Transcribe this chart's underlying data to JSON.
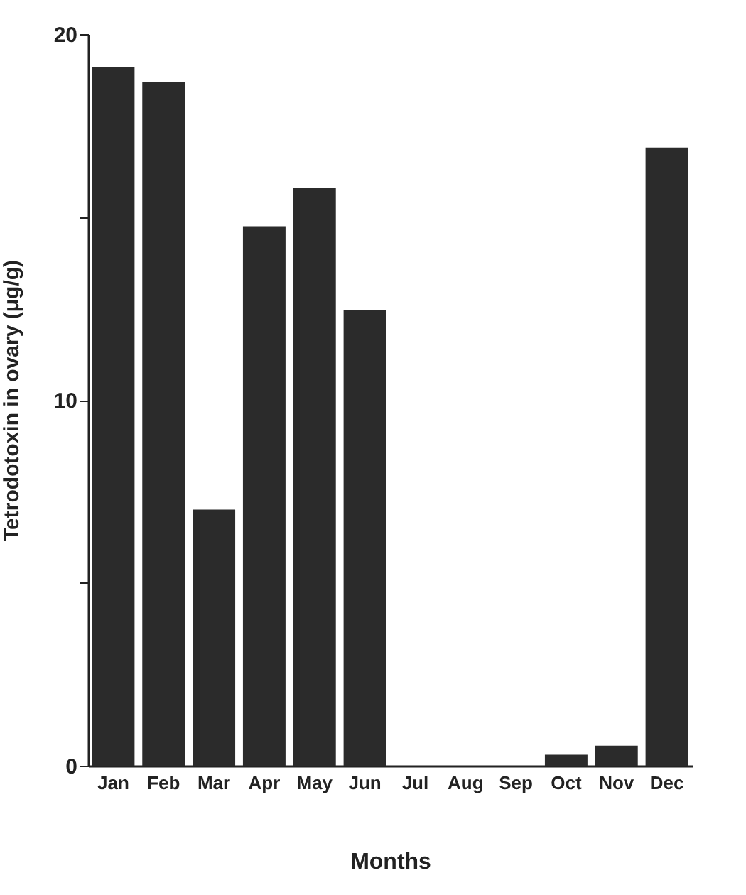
{
  "chart_data": {
    "type": "bar",
    "xlabel": "Months",
    "ylabel": "Tetrodotoxin in ovary (μg/g)",
    "categories": [
      "Jan",
      "Feb",
      "Mar",
      "Apr",
      "May",
      "Jun",
      "Jul",
      "Aug",
      "Sep",
      "Oct",
      "Nov",
      "Dec"
    ],
    "values": [
      19.1,
      18.7,
      7.0,
      14.75,
      15.8,
      12.45,
      0,
      0,
      0,
      0.3,
      0.55,
      16.9
    ],
    "color": "#2b2b2b",
    "ylim": [
      0,
      20
    ],
    "yticks": [
      0,
      {
        "value": 5,
        "label": null
      },
      10,
      {
        "value": 15,
        "label": null
      },
      20
    ],
    "grid": false
  }
}
